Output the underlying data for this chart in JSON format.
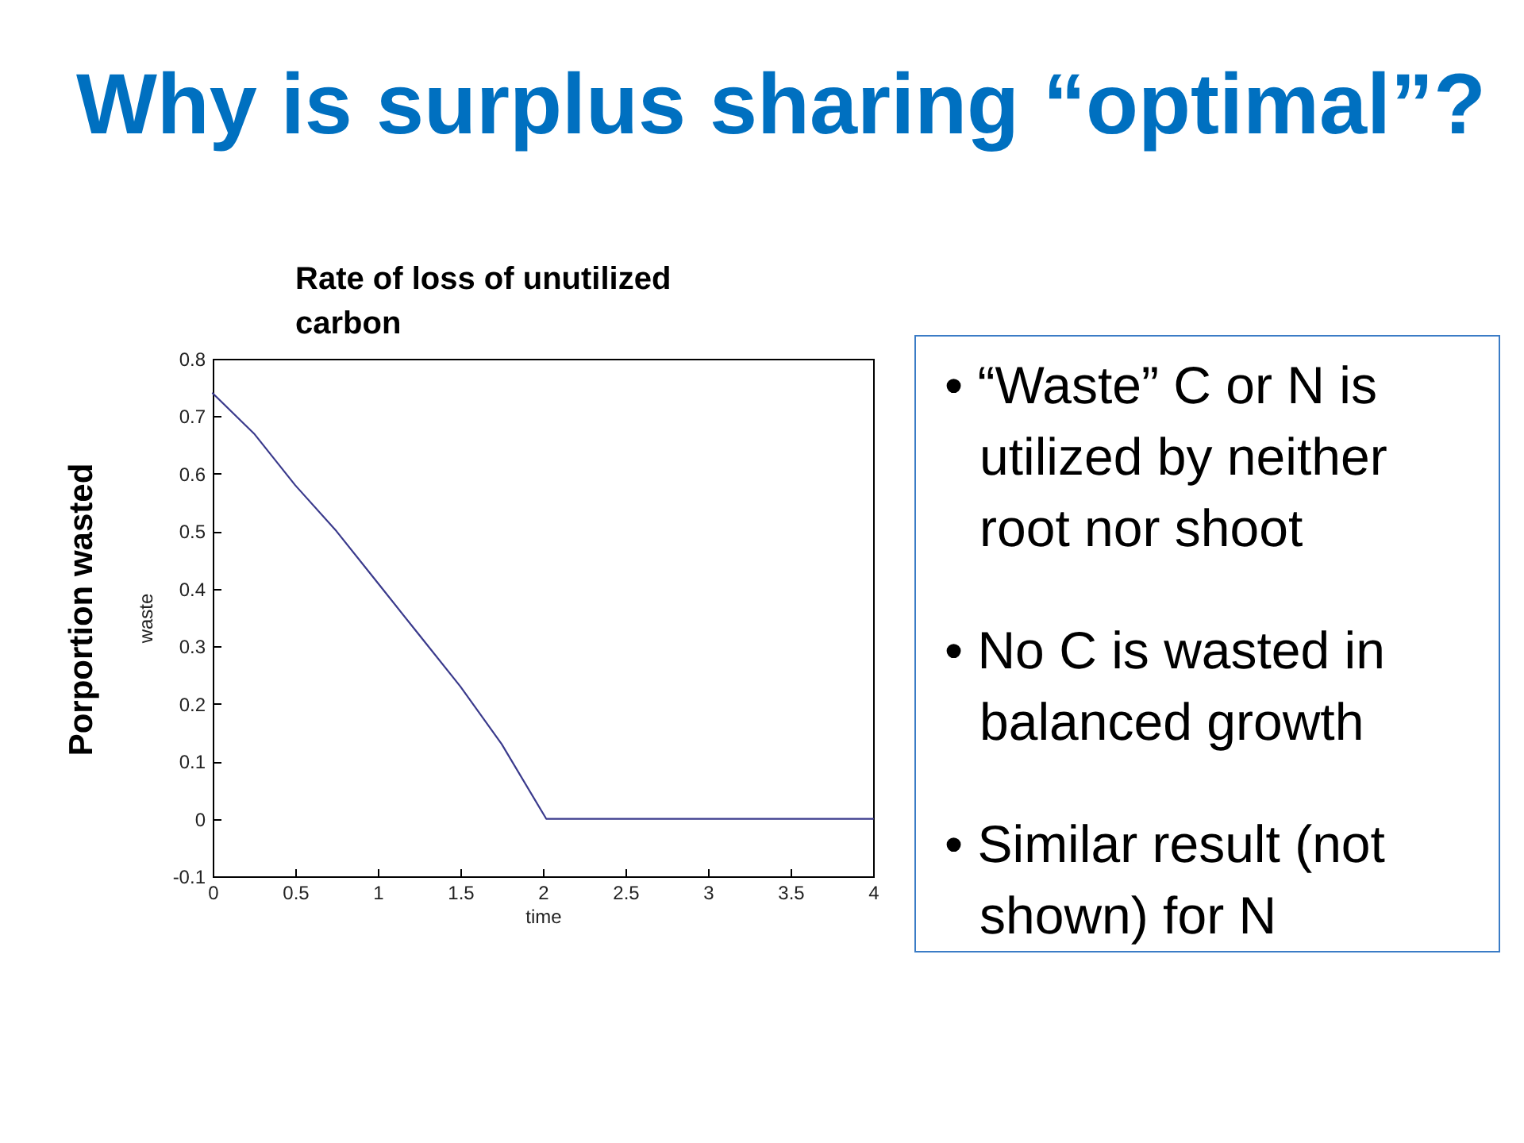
{
  "chart_data": [
    {
      "type": "line",
      "title": "Why is surplus sharing “optimal”?",
      "subtitle": "Rate of loss of unutilized carbon",
      "xlabel": "time",
      "ylabel": "waste",
      "annotations": [
        "Porportion wasted"
      ],
      "x": [
        0,
        0.25,
        0.5,
        0.75,
        1,
        1.25,
        1.5,
        1.75,
        2.02,
        2.5,
        3,
        3.5,
        4
      ],
      "series": [
        {
          "color": "#3a3a8c",
          "values": [
            0.74,
            0.67,
            0.58,
            0.5,
            0.41,
            0.32,
            0.23,
            0.13,
            0,
            0,
            0,
            0,
            0
          ]
        }
      ],
      "xlim": [
        0,
        4
      ],
      "ylim": [
        -0.1,
        0.8
      ],
      "xticks": [
        0,
        0.5,
        1,
        1.5,
        2,
        2.5,
        3,
        3.5,
        4
      ],
      "yticks": [
        -0.1,
        0,
        0.1,
        0.2,
        0.3,
        0.4,
        0.5,
        0.6,
        0.7,
        0.8
      ],
      "grid": false
    },
    {
      "type": "other",
      "annotations": [
        "• “Waste” C or N is utilized by neither root nor shoot",
        "• No C is wasted in balanced growth",
        "• Similar result (not shown) for N"
      ]
    }
  ]
}
